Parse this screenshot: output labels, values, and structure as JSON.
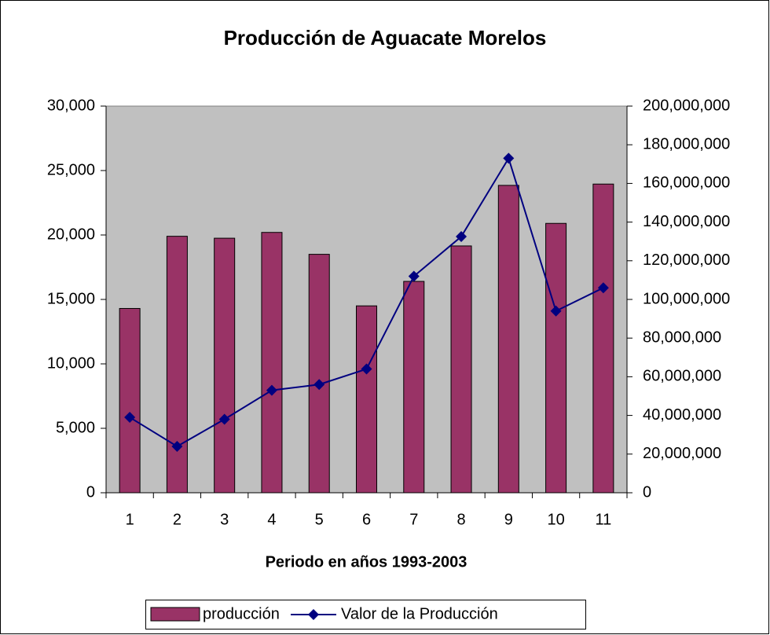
{
  "chart_data": {
    "type": "bar_line",
    "title": "Producción de Aguacate Morelos",
    "x_label": "Periodo en años 1993-2003",
    "categories": [
      1,
      2,
      3,
      4,
      5,
      6,
      7,
      8,
      9,
      10,
      11
    ],
    "series": [
      {
        "name": "producción",
        "type": "bar",
        "color": "#993366",
        "values": [
          14300,
          19900,
          19750,
          20200,
          18500,
          14500,
          16400,
          19150,
          23850,
          20900,
          23950
        ]
      },
      {
        "name": "Valor de la Producción",
        "type": "line",
        "color": "#000080",
        "axis": "y2",
        "values": [
          39000000,
          24000000,
          38000000,
          53000000,
          56000000,
          64000000,
          112000000,
          132500000,
          173000000,
          94000000,
          106000000
        ]
      }
    ],
    "ylim": [
      0,
      30000
    ],
    "yticks": [
      0,
      {
        "value": 5000,
        "label": "5,000"
      },
      {
        "value": 10000,
        "label": "10,000"
      },
      {
        "value": 15000,
        "label": "15,000"
      },
      {
        "value": 20000,
        "label": "20,000"
      },
      {
        "value": 25000,
        "label": "25,000"
      },
      {
        "value": 30000,
        "label": "30,000"
      }
    ],
    "y2lim": [
      0,
      200000000
    ],
    "y2ticks": [
      0,
      {
        "value": 20000000,
        "label": "20,000,000"
      },
      {
        "value": 40000000,
        "label": "40,000,000"
      },
      {
        "value": 60000000,
        "label": "60,000,000"
      },
      {
        "value": 80000000,
        "label": "80,000,000"
      },
      {
        "value": 100000000,
        "label": "100,000,000"
      },
      {
        "value": 120000000,
        "label": "120,000,000"
      },
      {
        "value": 140000000,
        "label": "140,000,000"
      },
      {
        "value": 160000000,
        "label": "160,000,000"
      },
      {
        "value": 180000000,
        "label": "180,000,000"
      },
      {
        "value": 200000000,
        "label": "200,000,000"
      }
    ],
    "plot_background": "#c0c0c0",
    "legend": "bottom"
  }
}
